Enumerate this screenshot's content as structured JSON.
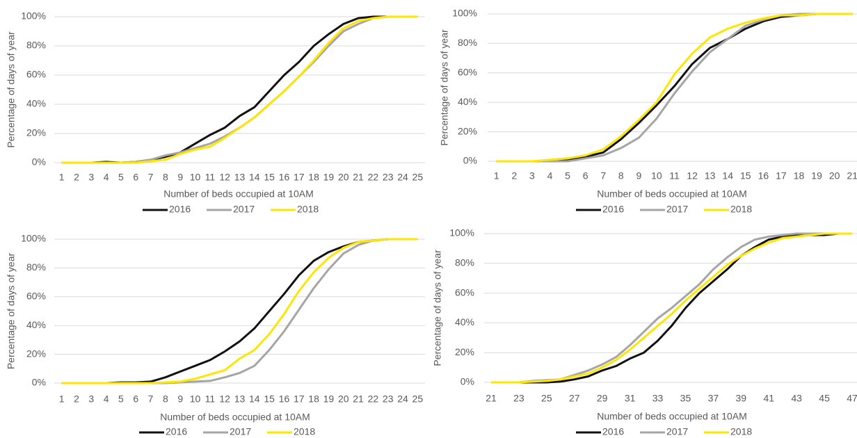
{
  "chart_data": [
    {
      "type": "line",
      "y_label": "Percentage of days of year",
      "x_label": "Number of beds occupied at 10AM",
      "categories": [
        1,
        2,
        3,
        4,
        5,
        6,
        7,
        8,
        9,
        10,
        11,
        12,
        13,
        14,
        15,
        16,
        17,
        18,
        19,
        20,
        21,
        22,
        23,
        24,
        25
      ],
      "ylim": [
        0,
        100
      ],
      "yticks": [
        {
          "value": 0,
          "label": "0%"
        },
        {
          "value": 20,
          "label": "20%"
        },
        {
          "value": 40,
          "label": "40%"
        },
        {
          "value": 60,
          "label": "60%"
        },
        {
          "value": 80,
          "label": "80%"
        },
        {
          "value": 100,
          "label": "100%"
        }
      ],
      "grid": true,
      "series": [
        {
          "name": "2016",
          "color": "#111111",
          "values": [
            0,
            0,
            0,
            0.5,
            0,
            0.5,
            2,
            4,
            7,
            13,
            19,
            24,
            32,
            38,
            49,
            60,
            69,
            80,
            88,
            95,
            99,
            100,
            100,
            100,
            100
          ]
        },
        {
          "name": "2017",
          "color": "#a5a5a5",
          "values": [
            0,
            0,
            0,
            0,
            0,
            0.5,
            2,
            5,
            7,
            10,
            13,
            18,
            24,
            31,
            40,
            49,
            59,
            69,
            80,
            90,
            95,
            99,
            100,
            100,
            100
          ]
        },
        {
          "name": "2018",
          "color": "#ffe600",
          "values": [
            0,
            0,
            0,
            0,
            0,
            0,
            1,
            2,
            6,
            9,
            11,
            17,
            24,
            31,
            40,
            49,
            59,
            70,
            82,
            92,
            97,
            99,
            100,
            100,
            100
          ]
        }
      ]
    },
    {
      "type": "line",
      "y_label": "Percentage of days of year",
      "x_label": "Number of beds occupied at 10AM",
      "categories": [
        1,
        2,
        3,
        4,
        5,
        6,
        7,
        8,
        9,
        10,
        11,
        12,
        13,
        14,
        15,
        16,
        17,
        18,
        19,
        20,
        21
      ],
      "ylim": [
        0,
        100
      ],
      "yticks": [
        {
          "value": 0,
          "label": "0%"
        },
        {
          "value": 20,
          "label": "20%"
        },
        {
          "value": 40,
          "label": "40%"
        },
        {
          "value": 60,
          "label": "60%"
        },
        {
          "value": 80,
          "label": "80%"
        },
        {
          "value": 100,
          "label": "100%"
        }
      ],
      "grid": true,
      "series": [
        {
          "name": "2016",
          "color": "#111111",
          "values": [
            0,
            0,
            0,
            0,
            0.5,
            3,
            6,
            15,
            26,
            38,
            51,
            66,
            77,
            83,
            90,
            95,
            98,
            99,
            100,
            100,
            100
          ]
        },
        {
          "name": "2017",
          "color": "#a5a5a5",
          "values": [
            0,
            0,
            0,
            0,
            0,
            2,
            4,
            9,
            16,
            29,
            46,
            61,
            74,
            83,
            92,
            96,
            99,
            100,
            100,
            100,
            100
          ]
        },
        {
          "name": "2018",
          "color": "#ffe600",
          "values": [
            0,
            0,
            0,
            1,
            2,
            4,
            8,
            17,
            28,
            40,
            59,
            73,
            84,
            90,
            94,
            97,
            99,
            99,
            100,
            100,
            100
          ]
        }
      ]
    },
    {
      "type": "line",
      "y_label": "Percentage of days of year",
      "x_label": "Number of beds occupied at 10AM",
      "categories": [
        1,
        2,
        3,
        4,
        5,
        6,
        7,
        8,
        9,
        10,
        11,
        12,
        13,
        14,
        15,
        16,
        17,
        18,
        19,
        20,
        21,
        22,
        23,
        24,
        25
      ],
      "ylim": [
        0,
        100
      ],
      "yticks": [
        {
          "value": 0,
          "label": "0%"
        },
        {
          "value": 20,
          "label": "20%"
        },
        {
          "value": 40,
          "label": "40%"
        },
        {
          "value": 60,
          "label": "60%"
        },
        {
          "value": 80,
          "label": "80%"
        },
        {
          "value": 100,
          "label": "100%"
        }
      ],
      "grid": true,
      "series": [
        {
          "name": "2016",
          "color": "#111111",
          "values": [
            0,
            0,
            0,
            0,
            0.5,
            0.5,
            1,
            4,
            8,
            12,
            16,
            22,
            29,
            38,
            50,
            62,
            75,
            85,
            91,
            95,
            98,
            99,
            100,
            100,
            100
          ]
        },
        {
          "name": "2017",
          "color": "#a5a5a5",
          "values": [
            0,
            0,
            0,
            0,
            0,
            0,
            0,
            0,
            0.5,
            1,
            1.5,
            4,
            7,
            12,
            23,
            36,
            51,
            66,
            79,
            90,
            96,
            99,
            100,
            100,
            100
          ]
        },
        {
          "name": "2018",
          "color": "#ffe600",
          "values": [
            0,
            0,
            0,
            0,
            0,
            0,
            0,
            0.5,
            1,
            3,
            6,
            9,
            17,
            23,
            34,
            48,
            64,
            77,
            87,
            94,
            98,
            99,
            100,
            100,
            100
          ]
        }
      ]
    },
    {
      "type": "line",
      "y_label": "Percentage of days of year",
      "x_label": "Number of beds occupied at 10AM",
      "categories": [
        21,
        null,
        23,
        null,
        25,
        null,
        27,
        null,
        29,
        null,
        31,
        null,
        33,
        null,
        35,
        null,
        37,
        null,
        39,
        null,
        41,
        null,
        43,
        null,
        45,
        null,
        47
      ],
      "ylim": [
        0,
        100
      ],
      "yticks": [
        {
          "value": 0,
          "label": "0%"
        },
        {
          "value": 20,
          "label": "20%"
        },
        {
          "value": 40,
          "label": "40%"
        },
        {
          "value": 60,
          "label": "60%"
        },
        {
          "value": 80,
          "label": "80%"
        },
        {
          "value": 100,
          "label": "100%"
        }
      ],
      "grid": true,
      "series": [
        {
          "name": "2016",
          "color": "#111111",
          "values": [
            0,
            0,
            0,
            0,
            0,
            0.5,
            2,
            4,
            8,
            11,
            16,
            20,
            28,
            38,
            50,
            60,
            68,
            76,
            85,
            91,
            96,
            98,
            99,
            99,
            99,
            100,
            100
          ]
        },
        {
          "name": "2017",
          "color": "#a5a5a5",
          "values": [
            0,
            0,
            0,
            1,
            1.5,
            2,
            5,
            8,
            12,
            17,
            25,
            34,
            43,
            50,
            58,
            66,
            76,
            84,
            91,
            96,
            98,
            99,
            100,
            100,
            100,
            100,
            100
          ]
        },
        {
          "name": "2018",
          "color": "#ffe600",
          "values": [
            0,
            0,
            0,
            0.5,
            1,
            2,
            4,
            6,
            10,
            15,
            22,
            30,
            38,
            46,
            55,
            63,
            71,
            79,
            85,
            90,
            94,
            97,
            98,
            99,
            100,
            100,
            100
          ]
        }
      ]
    }
  ]
}
